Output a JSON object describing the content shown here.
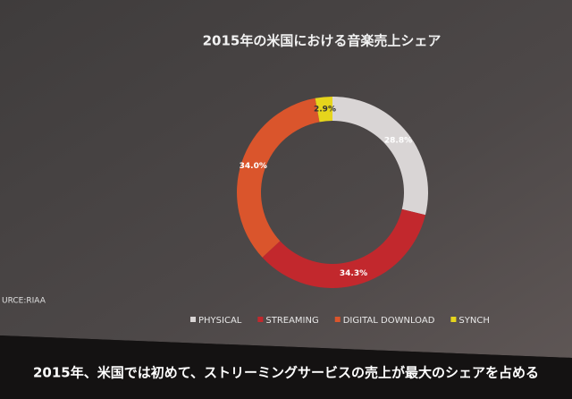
{
  "chart_data": {
    "type": "donut",
    "title": "2015年の米国における音楽売上シェア",
    "categories": [
      "PHYSICAL",
      "STREAMING",
      "DIGITAL DOWNLOAD",
      "SYNCH"
    ],
    "values": [
      28.8,
      34.3,
      34.0,
      2.9
    ],
    "value_labels": [
      "28.8%",
      "34.3%",
      "34.0%",
      "2.9%"
    ],
    "colors": [
      "#d9d5d5",
      "#c2282d",
      "#da552c",
      "#e6d51c"
    ],
    "source": "URCE:RIAA",
    "caption": "2015年、米国では初めて、ストリーミングサービスの売上が最大のシェアを占める"
  }
}
